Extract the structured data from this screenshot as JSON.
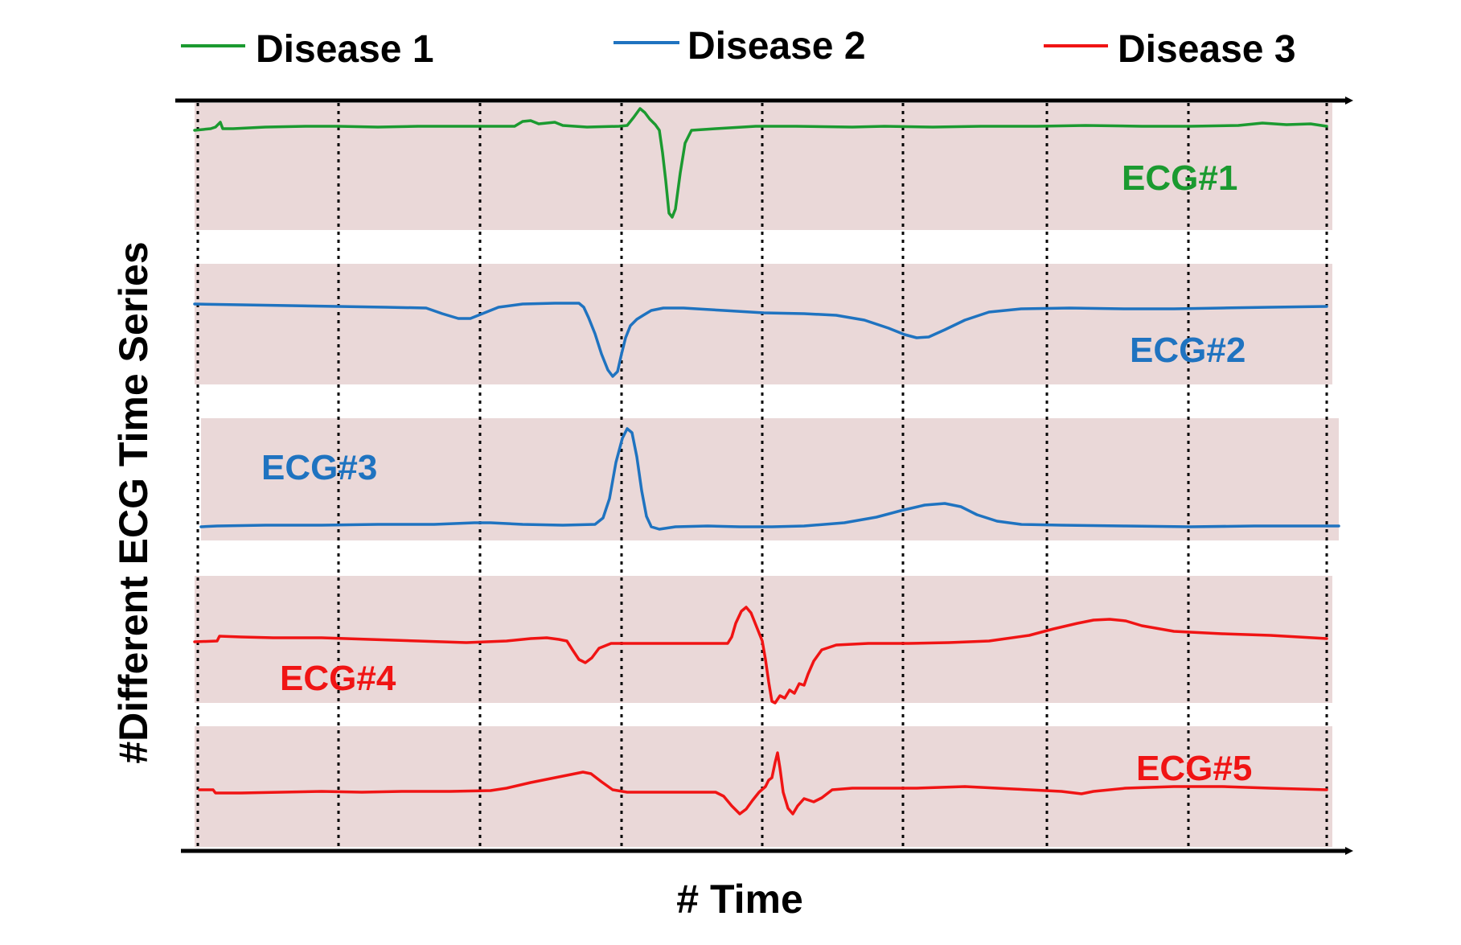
{
  "legend": {
    "items": [
      {
        "label": "Disease 1",
        "color": "#1b9a30"
      },
      {
        "label": "Disease 2",
        "color": "#1f73c0"
      },
      {
        "label": "Disease 3",
        "color": "#f01414"
      }
    ]
  },
  "y_axis_label": "#Different ECG Time Series",
  "x_axis_label": "# Time",
  "colors": {
    "band": "#ead8d8",
    "axis": "#000000",
    "divider": "#000000"
  },
  "traces": [
    {
      "label": "ECG#1",
      "disease": "Disease 1",
      "color": "#1b9a30"
    },
    {
      "label": "ECG#2",
      "disease": "Disease 2",
      "color": "#1f73c0"
    },
    {
      "label": "ECG#3",
      "disease": "Disease 2",
      "color": "#1f73c0"
    },
    {
      "label": "ECG#4",
      "disease": "Disease 3",
      "color": "#f01414"
    },
    {
      "label": "ECG#5",
      "disease": "Disease 3",
      "color": "#f01414"
    }
  ],
  "time_segments": 8
}
